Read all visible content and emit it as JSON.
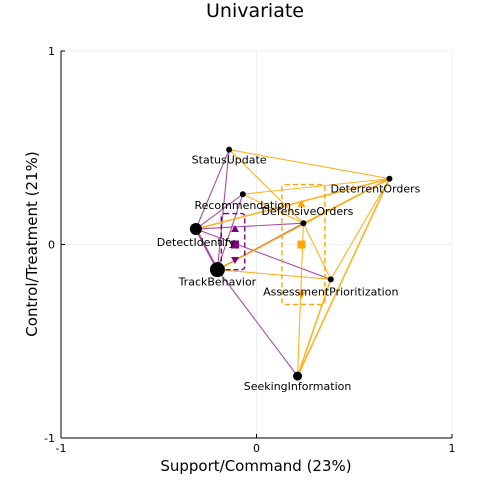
{
  "chart_data": {
    "type": "scatter",
    "title": "Univariate",
    "xlabel": "Support/Command (23%)",
    "ylabel": "Control/Treatment (21%)",
    "xlim": [
      -1,
      1
    ],
    "ylim": [
      -1,
      1
    ],
    "x_ticks": [
      "-1",
      "0",
      "1"
    ],
    "y_ticks": [
      "-1",
      "0",
      "1"
    ],
    "grid": true,
    "colors": {
      "group_a": "#800080",
      "group_b": "#FFA500",
      "points": "#000000"
    },
    "nodes": [
      {
        "label": "StatusUpdate",
        "x": -0.14,
        "y": 0.49,
        "weight": 1
      },
      {
        "label": "DeterrentOrders",
        "x": 0.68,
        "y": 0.34,
        "weight": 1
      },
      {
        "label": "Recommendation",
        "x": -0.07,
        "y": 0.26,
        "weight": 1
      },
      {
        "label": "DefensiveOrders",
        "x": 0.24,
        "y": 0.11,
        "weight": 1
      },
      {
        "label": "DetectIdentify",
        "x": -0.31,
        "y": 0.08,
        "weight": 3
      },
      {
        "label": "TrackBehavior",
        "x": -0.2,
        "y": -0.13,
        "weight": 4
      },
      {
        "label": "AssessmentPrioritization",
        "x": 0.38,
        "y": -0.18,
        "weight": 1
      },
      {
        "label": "SeekingInformation",
        "x": 0.21,
        "y": -0.68,
        "weight": 2
      }
    ],
    "groups": [
      {
        "color": "#800080",
        "centroid": [
          -0.11,
          0.0
        ],
        "box": [
          -0.18,
          -0.06,
          -0.13,
          0.16
        ],
        "upper": [
          -0.11,
          0.08
        ],
        "lower": [
          -0.11,
          -0.08
        ],
        "edges": [
          [
            "StatusUpdate",
            "DetectIdentify",
            1
          ],
          [
            "StatusUpdate",
            "TrackBehavior",
            1
          ],
          [
            "Recommendation",
            "DetectIdentify",
            1
          ],
          [
            "Recommendation",
            "TrackBehavior",
            1
          ],
          [
            "DetectIdentify",
            "TrackBehavior",
            3
          ],
          [
            "DetectIdentify",
            "DefensiveOrders",
            1
          ],
          [
            "TrackBehavior",
            "DefensiveOrders",
            1
          ],
          [
            "TrackBehavior",
            "SeekingInformation",
            1
          ],
          [
            "DetectIdentify",
            "AssessmentPrioritization",
            1
          ]
        ]
      },
      {
        "color": "#FFA500",
        "centroid": [
          0.23,
          0.0
        ],
        "box": [
          0.13,
          0.35,
          -0.31,
          0.31
        ],
        "upper": [
          0.23,
          0.21
        ],
        "lower": [
          0.23,
          -0.26
        ],
        "edges": [
          [
            "StatusUpdate",
            "DeterrentOrders",
            1
          ],
          [
            "StatusUpdate",
            "DefensiveOrders",
            1
          ],
          [
            "Recommendation",
            "DeterrentOrders",
            1
          ],
          [
            "Recommendation",
            "DefensiveOrders",
            1
          ],
          [
            "DetectIdentify",
            "DeterrentOrders",
            2
          ],
          [
            "TrackBehavior",
            "DeterrentOrders",
            2
          ],
          [
            "TrackBehavior",
            "AssessmentPrioritization",
            1
          ],
          [
            "DefensiveOrders",
            "DeterrentOrders",
            1
          ],
          [
            "DefensiveOrders",
            "AssessmentPrioritization",
            1
          ],
          [
            "DeterrentOrders",
            "AssessmentPrioritization",
            1
          ],
          [
            "DeterrentOrders",
            "SeekingInformation",
            2
          ],
          [
            "AssessmentPrioritization",
            "SeekingInformation",
            2
          ],
          [
            "DefensiveOrders",
            "SeekingInformation",
            1
          ]
        ]
      }
    ]
  }
}
